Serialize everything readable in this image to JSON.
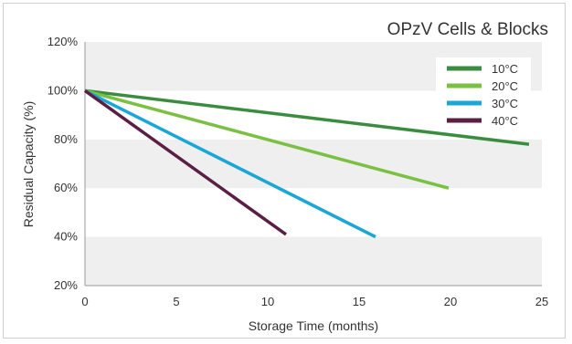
{
  "chart_data": {
    "type": "line",
    "title": "OPzV Cells & Blocks",
    "xlabel": "Storage Time (months)",
    "ylabel": "Residual Capacity (%)",
    "xlim": [
      0,
      25
    ],
    "ylim": [
      20,
      120
    ],
    "x_ticks": [
      "0",
      "5",
      "10",
      "15",
      "20",
      "25"
    ],
    "y_ticks": [
      "20%",
      "40%",
      "60%",
      "80%",
      "100%",
      "120%"
    ],
    "grid": "alternating horizontal bands",
    "legend_position": "top-right",
    "series": [
      {
        "name": "10°C",
        "color": "#3a8d3f",
        "points": [
          [
            0,
            100
          ],
          [
            24.3,
            78
          ]
        ]
      },
      {
        "name": "20°C",
        "color": "#79c043",
        "points": [
          [
            0,
            100
          ],
          [
            19.9,
            60
          ]
        ]
      },
      {
        "name": "30°C",
        "color": "#1aa7d8",
        "points": [
          [
            0,
            100
          ],
          [
            15.9,
            40
          ]
        ]
      },
      {
        "name": "40°C",
        "color": "#5b1f45",
        "points": [
          [
            0,
            100
          ],
          [
            11.0,
            41
          ]
        ]
      }
    ]
  },
  "colors": {
    "band": "#efefef",
    "axis": "#999999"
  }
}
